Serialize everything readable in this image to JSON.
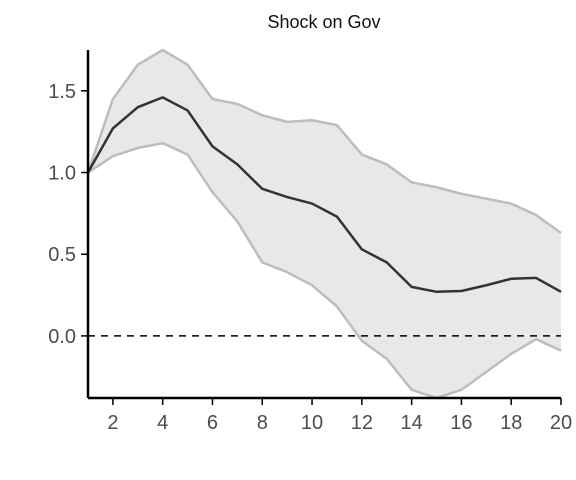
{
  "chart_data": {
    "type": "line",
    "title": "Shock on Gov",
    "xlabel": "",
    "ylabel": "",
    "xlim": [
      1,
      20
    ],
    "ylim": [
      -0.38,
      1.75
    ],
    "x_ticks": [
      2,
      4,
      6,
      8,
      10,
      12,
      14,
      16,
      18,
      20
    ],
    "y_ticks": [
      1.5,
      1.0,
      0.5,
      0.0
    ],
    "x_tick_labels": [
      "2",
      "4",
      "6",
      "8",
      "10",
      "12",
      "14",
      "16",
      "18",
      "20"
    ],
    "y_tick_labels": [
      "1.5",
      "1.0",
      "0.5",
      "0.0"
    ],
    "reference_line": 0.0,
    "grid": false,
    "x": [
      1,
      2,
      3,
      4,
      5,
      6,
      7,
      8,
      9,
      10,
      11,
      12,
      13,
      14,
      15,
      16,
      17,
      18,
      19,
      20
    ],
    "series": [
      {
        "role": "estimate",
        "values": [
          1.0,
          1.27,
          1.4,
          1.46,
          1.38,
          1.16,
          1.05,
          0.9,
          0.85,
          0.81,
          0.73,
          0.53,
          0.45,
          0.3,
          0.27,
          0.275,
          0.31,
          0.35,
          0.355,
          0.27
        ]
      },
      {
        "role": "upper_band",
        "values": [
          1.0,
          1.45,
          1.66,
          1.75,
          1.66,
          1.45,
          1.42,
          1.35,
          1.31,
          1.32,
          1.29,
          1.11,
          1.05,
          0.94,
          0.91,
          0.87,
          0.84,
          0.81,
          0.74,
          0.63
        ]
      },
      {
        "role": "lower_band",
        "values": [
          1.0,
          1.1,
          1.15,
          1.18,
          1.11,
          0.88,
          0.7,
          0.45,
          0.39,
          0.31,
          0.18,
          -0.03,
          -0.14,
          -0.33,
          -0.38,
          -0.33,
          -0.22,
          -0.11,
          -0.02,
          -0.09
        ]
      }
    ],
    "colors": {
      "band_fill": "#e8e8e8",
      "band_edge": "#bdbdbd",
      "estimate_line": "#333333",
      "axis": "#000000",
      "zero_line": "#000000"
    }
  }
}
